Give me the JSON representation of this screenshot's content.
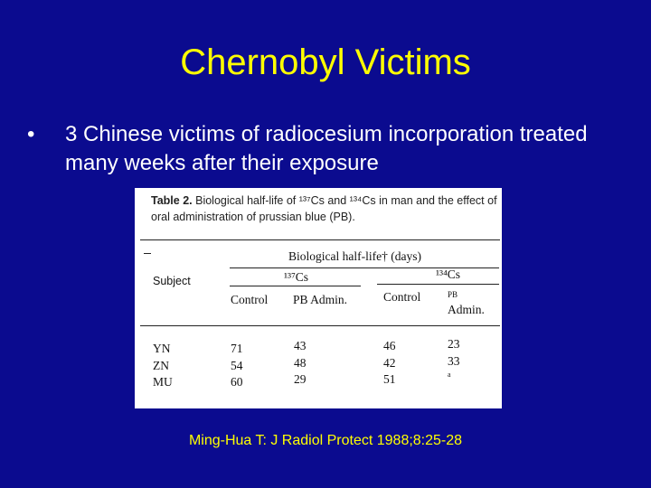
{
  "slide": {
    "title": "Chernobyl Victims",
    "bullet": "3 Chinese victims of radiocesium incorporation treated many weeks after their exposure",
    "bullet_symbol": "•",
    "citation": "Ming-Hua T: J Radiol Protect 1988;8:25-28"
  },
  "table": {
    "caption_bold": "Table 2.",
    "caption_text": "Biological half-life of ¹³⁷Cs and ¹³⁴Cs in man and the effect of oral administration of prussian blue (PB).",
    "group_header": "Biological half-life† (days)",
    "subject_header": "Subject",
    "cs137_header": "¹³⁷Cs",
    "cs134_header": "¹³⁴Cs",
    "col_control_1": "Control",
    "col_pb_admin_1": "PB Admin.",
    "col_control_2": "Control",
    "col_pb_1": "PB",
    "col_admin_2": "Admin.",
    "rows": [
      {
        "subject": "YN",
        "cs137_control": "71",
        "cs137_pb": "43",
        "cs134_control": "46",
        "cs134_pb": "23"
      },
      {
        "subject": "ZN",
        "cs137_control": "54",
        "cs137_pb": "48",
        "cs134_control": "42",
        "cs134_pb": "33"
      },
      {
        "subject": "MU",
        "cs137_control": "60",
        "cs137_pb": "29",
        "cs134_control": "51",
        "cs134_pb": "a"
      }
    ]
  }
}
